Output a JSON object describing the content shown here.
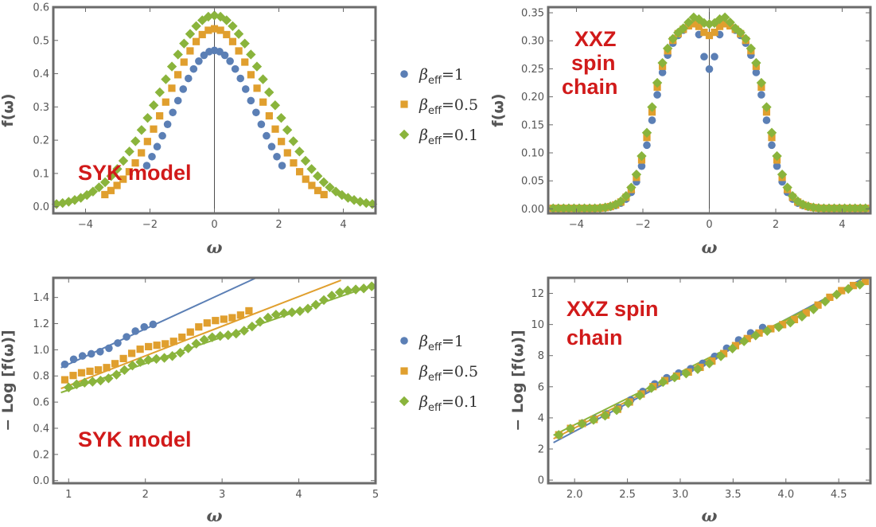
{
  "colors": {
    "beta1": "#5b7fb5",
    "beta05": "#e09f2e",
    "beta01": "#8ab43c",
    "annotation": "#d11a1a",
    "frame": "#6b6b6b"
  },
  "legend": {
    "symbol": "β",
    "subscript": "eff",
    "entries": [
      {
        "value": "=1",
        "marker": "circle",
        "color_key": "beta1"
      },
      {
        "value": "=0.5",
        "marker": "square",
        "color_key": "beta05"
      },
      {
        "value": "=0.1",
        "marker": "diamond",
        "color_key": "beta01"
      }
    ]
  },
  "chart_data": [
    {
      "id": "syk-top",
      "type": "scatter",
      "annotation": [
        "SYK model"
      ],
      "xlabel": "ω",
      "ylabel": "f(ω)",
      "xlim": [
        -5,
        5
      ],
      "ylim": [
        -0.02,
        0.6
      ],
      "xticks": [
        -4,
        -2,
        0,
        2,
        4
      ],
      "xtick_labels": [
        "−4",
        "−2",
        "0",
        "2",
        "4"
      ],
      "yticks": [
        0.0,
        0.1,
        0.2,
        0.3,
        0.4,
        0.5,
        0.6
      ],
      "ytick_labels": [
        "0.0",
        "0.1",
        "0.2",
        "0.3",
        "0.4",
        "0.5",
        "0.6"
      ],
      "zero_line": true,
      "series": [
        {
          "name": "β_eff=1",
          "marker": "circle",
          "color_key": "beta1",
          "shape": "gauss",
          "peak": 0.47,
          "base": 0.0,
          "width": 3.3,
          "xmin": -2.1,
          "xmax": 2.1,
          "n": 27
        },
        {
          "name": "β_eff=0.5",
          "marker": "square",
          "color_key": "beta05",
          "shape": "gauss",
          "peak": 0.535,
          "base": 0.0,
          "width": 4.3,
          "xmin": -3.4,
          "xmax": 3.4,
          "n": 37
        },
        {
          "name": "β_eff=0.1",
          "marker": "diamond",
          "color_key": "beta01",
          "shape": "gauss",
          "peak": 0.575,
          "base": 0.0,
          "width": 5.6,
          "xmin": -4.9,
          "xmax": 4.9,
          "n": 53
        }
      ]
    },
    {
      "id": "xxz-top",
      "type": "scatter",
      "annotation": [
        "XXZ",
        "spin",
        "chain"
      ],
      "xlabel": "ω",
      "ylabel": "f(ω)",
      "xlim": [
        -4.85,
        4.85
      ],
      "ylim": [
        -0.008,
        0.36
      ],
      "xticks": [
        -4,
        -2,
        0,
        2,
        4
      ],
      "xtick_labels": [
        "−4",
        "−2",
        "0",
        "2",
        "4"
      ],
      "yticks": [
        0.0,
        0.05,
        0.1,
        0.15,
        0.2,
        0.25,
        0.3,
        0.35
      ],
      "ytick_labels": [
        "0.00",
        "0.05",
        "0.10",
        "0.15",
        "0.20",
        "0.25",
        "0.30",
        "0.35"
      ],
      "zero_line": true,
      "series": [
        {
          "name": "β_eff=1",
          "marker": "circle",
          "color_key": "beta1",
          "shape": "plateau",
          "peak": 0.33,
          "width": 1.7,
          "dip": 0.08,
          "bump": 0.01,
          "xmin": -4.7,
          "xmax": 4.7,
          "n": 61
        },
        {
          "name": "β_eff=0.5",
          "marker": "square",
          "color_key": "beta05",
          "shape": "plateau",
          "peak": 0.33,
          "width": 1.75,
          "dip": 0.02,
          "bump": 0.005,
          "xmin": -4.7,
          "xmax": 4.7,
          "n": 61
        },
        {
          "name": "β_eff=0.1",
          "marker": "diamond",
          "color_key": "beta01",
          "shape": "plateau",
          "peak": 0.33,
          "width": 1.78,
          "dip": 0.0,
          "bump": 0.015,
          "xmin": -4.7,
          "xmax": 4.7,
          "n": 61
        }
      ]
    },
    {
      "id": "syk-bottom",
      "type": "scatter",
      "annotation": [
        "SYK model"
      ],
      "xlabel": "ω",
      "ylabel": "− Log [f(ω)]",
      "xlim": [
        0.8,
        5.0
      ],
      "ylim": [
        -0.02,
        1.55
      ],
      "xticks": [
        1,
        2,
        3,
        4,
        5
      ],
      "xtick_labels": [
        "1",
        "2",
        "3",
        "4",
        "5"
      ],
      "yticks": [
        0.0,
        0.2,
        0.4,
        0.6,
        0.8,
        1.0,
        1.2,
        1.4
      ],
      "ytick_labels": [
        "0.0",
        "0.2",
        "0.4",
        "0.6",
        "0.8",
        "1.0",
        "1.2",
        "1.4"
      ],
      "zero_line": false,
      "series": [
        {
          "name": "β_eff=1",
          "marker": "circle",
          "color_key": "beta1",
          "shape": "linear",
          "slope": 0.27,
          "intercept": 0.62,
          "xmin": 0.95,
          "xmax": 2.1,
          "n": 11,
          "fit_x": [
            0.9,
            3.8
          ],
          "fit": [
            0.27,
            0.62
          ]
        },
        {
          "name": "β_eff=0.5",
          "marker": "square",
          "color_key": "beta05",
          "shape": "linear",
          "slope": 0.23,
          "intercept": 0.54,
          "xmin": 0.95,
          "xmax": 3.35,
          "n": 23,
          "fit_x": [
            0.9,
            4.55
          ],
          "fit": [
            0.2267,
            0.5
          ]
        },
        {
          "name": "β_eff=0.1",
          "marker": "diamond",
          "color_key": "beta01",
          "shape": "linear",
          "slope": 0.205,
          "intercept": 0.49,
          "xmin": 1.0,
          "xmax": 4.95,
          "n": 39,
          "fit_x": [
            0.9,
            5.0
          ],
          "fit": [
            0.2016,
            0.4915
          ]
        }
      ]
    },
    {
      "id": "xxz-bottom",
      "type": "scatter",
      "annotation": [
        "XXZ spin",
        "chain"
      ],
      "xlabel": "ω",
      "ylabel": "− Log [f(ω)]",
      "xlim": [
        1.75,
        4.8
      ],
      "ylim": [
        -0.2,
        13.0
      ],
      "xticks": [
        2.0,
        2.5,
        3.0,
        3.5,
        4.0,
        4.5
      ],
      "xtick_labels": [
        "2.0",
        "2.5",
        "3.0",
        "3.5",
        "4.0",
        "4.5"
      ],
      "yticks": [
        0,
        2,
        4,
        6,
        8,
        10,
        12
      ],
      "ytick_labels": [
        "0",
        "2",
        "4",
        "6",
        "8",
        "10",
        "12"
      ],
      "zero_line": false,
      "series": [
        {
          "name": "β_eff=1",
          "marker": "circle",
          "color_key": "beta1",
          "shape": "linear",
          "slope": 3.6,
          "intercept": -3.9,
          "xmin": 1.85,
          "xmax": 3.78,
          "n": 18,
          "fit_x": [
            1.8,
            4.8
          ],
          "fit": [
            3.6,
            -4.07
          ]
        },
        {
          "name": "β_eff=0.5",
          "marker": "square",
          "color_key": "beta05",
          "shape": "linear",
          "slope": 3.45,
          "intercept": -3.6,
          "xmin": 1.85,
          "xmax": 4.75,
          "n": 27,
          "fit_x": [
            1.8,
            4.8
          ],
          "fit": [
            3.45,
            -3.55
          ]
        },
        {
          "name": "β_eff=0.1",
          "marker": "diamond",
          "color_key": "beta01",
          "shape": "linear",
          "slope": 3.42,
          "intercept": -3.55,
          "xmin": 1.85,
          "xmax": 4.7,
          "n": 27,
          "fit_x": [
            1.8,
            4.8
          ],
          "fit": [
            3.38,
            -3.2
          ]
        }
      ]
    }
  ]
}
